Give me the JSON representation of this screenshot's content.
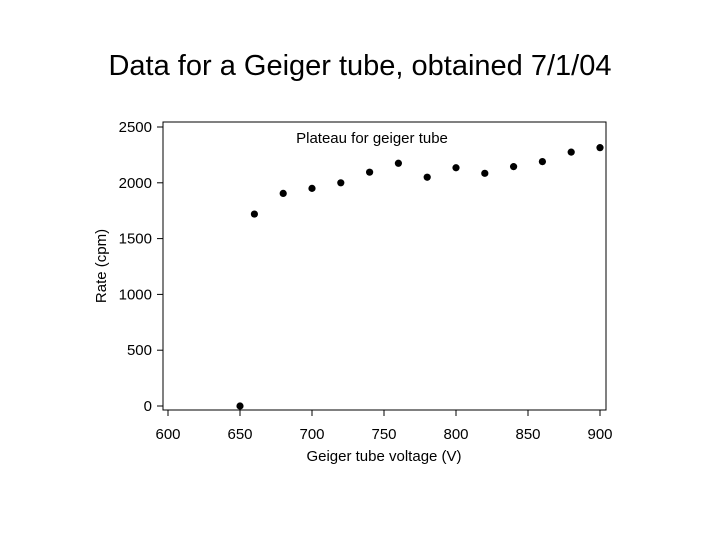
{
  "slide": {
    "title": "Data for a Geiger tube, obtained 7/1/04"
  },
  "chart_data": {
    "type": "scatter",
    "title": "Plateau for geiger tube",
    "xlabel": "Geiger tube voltage (V)",
    "ylabel": "Rate (cpm)",
    "xlim": [
      600,
      900
    ],
    "ylim": [
      0,
      2500
    ],
    "xticks": [
      600,
      650,
      700,
      750,
      800,
      850,
      900
    ],
    "yticks": [
      0,
      500,
      1000,
      1500,
      2000,
      2500
    ],
    "grid": false,
    "series": [
      {
        "x": [
          650,
          660,
          680,
          700,
          720,
          740,
          760,
          780,
          800,
          820,
          840,
          860,
          880,
          900
        ],
        "y": [
          0,
          1720,
          1905,
          1950,
          2000,
          2095,
          2175,
          2050,
          2135,
          2085,
          2145,
          2190,
          2275,
          2315
        ]
      }
    ],
    "colors": {
      "marker": "#000000",
      "axes": "#000000"
    }
  }
}
